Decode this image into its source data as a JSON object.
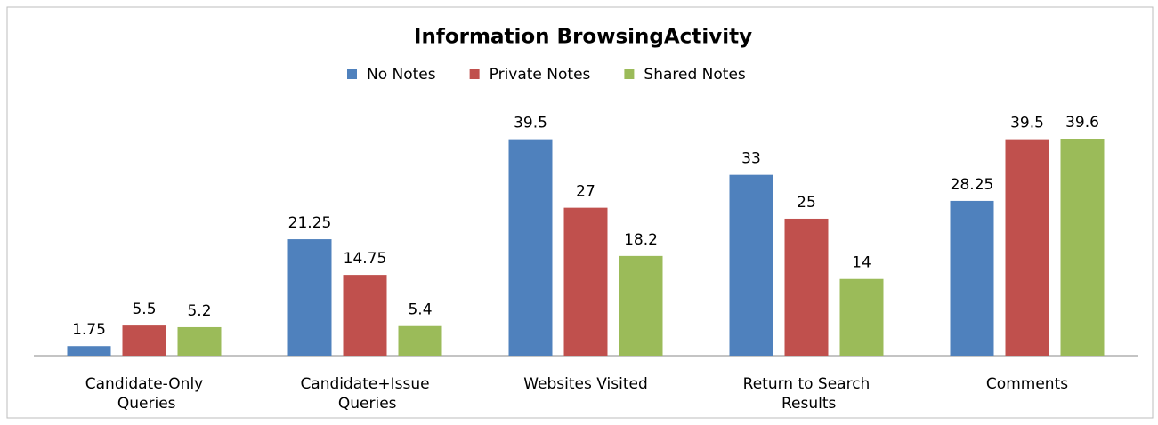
{
  "chart_data": {
    "type": "bar",
    "title": "Information BrowsingActivity",
    "categories": [
      "Candidate-Only Queries",
      "Candidate+Issue Queries",
      "Websites Visited",
      "Return to Search Results",
      "Comments"
    ],
    "series": [
      {
        "name": "No Notes",
        "color": "#4f81bd",
        "values": [
          1.75,
          21.25,
          39.5,
          33,
          28.25
        ]
      },
      {
        "name": "Private Notes",
        "color": "#c0504d",
        "values": [
          5.5,
          14.75,
          27,
          25,
          39.5
        ]
      },
      {
        "name": "Shared Notes",
        "color": "#9bbb59",
        "values": [
          5.2,
          5.4,
          18.2,
          14,
          39.6
        ]
      }
    ],
    "legend": "top"
  }
}
